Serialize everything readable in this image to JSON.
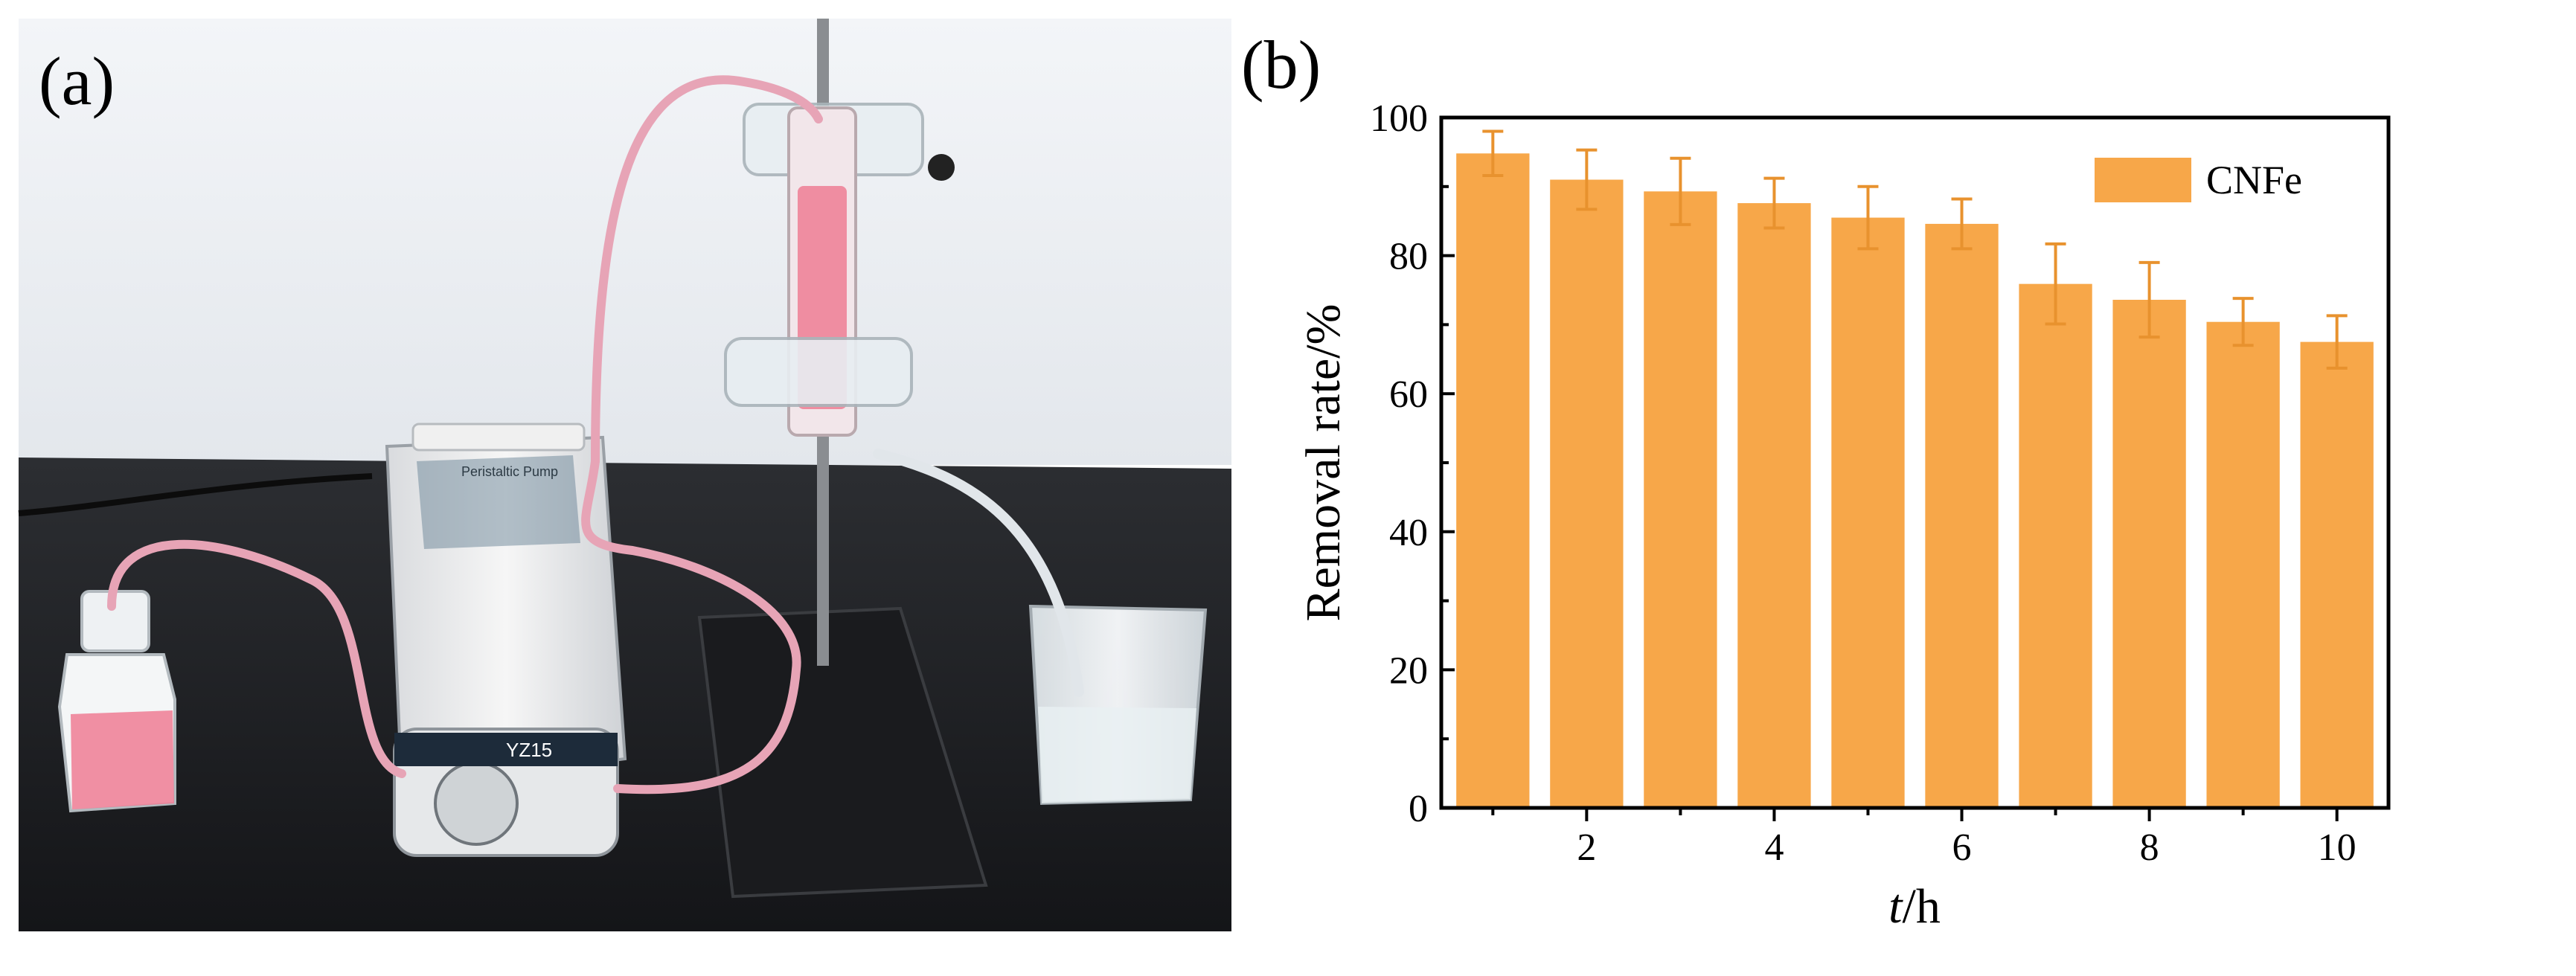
{
  "panel_a": {
    "label": "(a)",
    "photo_caption": "",
    "pump_brand_text": "YZ15",
    "pump_panel_text": "Peristaltic Pump"
  },
  "panel_b": {
    "label": "(b)"
  },
  "colors": {
    "bar": "#F7A749",
    "error_bar": "#E8922E",
    "tube": "#E7A4B6",
    "liquid": "#EE7C94"
  },
  "chart_data": {
    "type": "bar",
    "title": "",
    "xlabel": "t/h",
    "xlabel_italic": "t",
    "xlabel_rest": "/h",
    "ylabel": "Removal rate/%",
    "x": [
      1,
      2,
      3,
      4,
      5,
      6,
      7,
      8,
      9,
      10
    ],
    "x_tick_labels": [
      "2",
      "4",
      "6",
      "8",
      "10"
    ],
    "x_tick_values": [
      2,
      4,
      6,
      8,
      10
    ],
    "y_tick_labels": [
      "0",
      "20",
      "40",
      "60",
      "80",
      "100"
    ],
    "y_tick_values": [
      0,
      20,
      40,
      60,
      80,
      100
    ],
    "ylim": [
      0,
      100
    ],
    "xlim": [
      0.45,
      10.55
    ],
    "grid": false,
    "legend_position": "top-right",
    "series": [
      {
        "name": "CNFe",
        "values": [
          94.8,
          91.0,
          89.3,
          87.6,
          85.5,
          84.6,
          75.9,
          73.6,
          70.4,
          67.5
        ],
        "errors": [
          3.2,
          4.3,
          4.8,
          3.6,
          4.5,
          3.6,
          5.8,
          5.4,
          3.4,
          3.8
        ]
      }
    ]
  }
}
